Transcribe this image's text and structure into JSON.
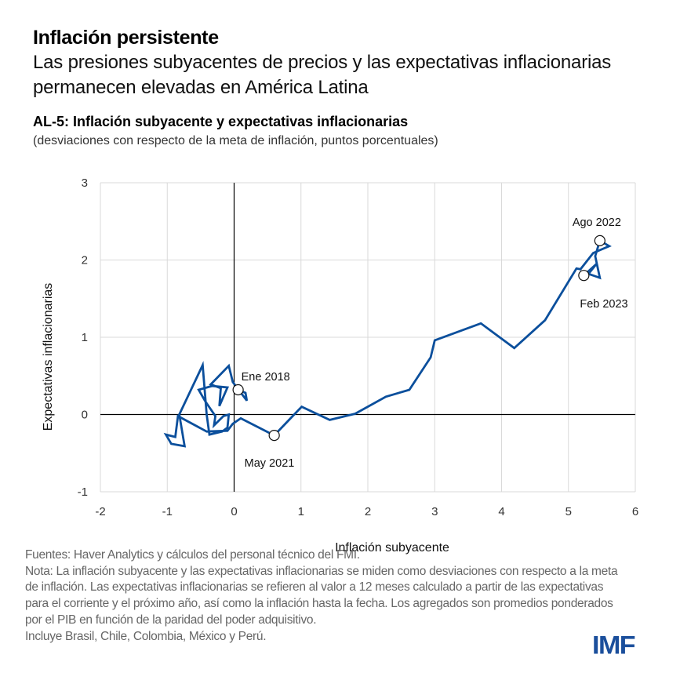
{
  "header": {
    "title": "Inflación persistente",
    "subtitle": "Las presiones subyacentes de precios y las expectativas inflacionarias permanecen elevadas en América Latina"
  },
  "chart_title": "AL-5: Inflación subyacente y expectativas inflacionarias",
  "chart_subtitle": "(desviaciones con respecto de la meta de inflación, puntos porcentuales)",
  "chart_data": {
    "type": "line",
    "title": "AL-5: Inflación subyacente y expectativas inflacionarias",
    "xlabel": "Inflación subyacente",
    "ylabel": "Expectativas inflacionarias",
    "xlim": [
      -2,
      6
    ],
    "ylim": [
      -1,
      3
    ],
    "xticks": [
      "-2",
      "-1",
      "0",
      "1",
      "2",
      "3",
      "4",
      "5",
      "6"
    ],
    "yticks": [
      "-1",
      "0",
      "1",
      "2",
      "3"
    ],
    "grid": true,
    "color": "#0b4f9c",
    "points": [
      [
        0.06,
        0.32
      ],
      [
        0.17,
        0.28
      ],
      [
        0.19,
        0.18
      ],
      [
        -0.02,
        0.42
      ],
      [
        -0.08,
        0.63
      ],
      [
        -0.35,
        0.39
      ],
      [
        -0.2,
        0.34
      ],
      [
        -0.22,
        0.11
      ],
      [
        -0.1,
        0.35
      ],
      [
        -0.33,
        0.37
      ],
      [
        -0.53,
        0.32
      ],
      [
        -0.43,
        0.17
      ],
      [
        -0.28,
        -0.02
      ],
      [
        -0.3,
        -0.14
      ],
      [
        -0.16,
        -0.02
      ],
      [
        -0.08,
        0.0
      ],
      [
        -0.1,
        -0.17
      ],
      [
        -0.18,
        -0.22
      ],
      [
        -0.37,
        -0.26
      ],
      [
        -0.41,
        0.0
      ],
      [
        -0.47,
        0.64
      ],
      [
        -0.82,
        0.0
      ],
      [
        -0.74,
        -0.41
      ],
      [
        -0.94,
        -0.38
      ],
      [
        -1.02,
        -0.26
      ],
      [
        -0.88,
        -0.29
      ],
      [
        -0.84,
        -0.02
      ],
      [
        -0.41,
        -0.22
      ],
      [
        -0.1,
        -0.21
      ],
      [
        -0.02,
        -0.12
      ],
      [
        0.1,
        -0.05
      ],
      [
        0.6,
        -0.27
      ],
      [
        1.01,
        0.1
      ],
      [
        1.43,
        -0.07
      ],
      [
        1.81,
        0.01
      ],
      [
        2.27,
        0.23
      ],
      [
        2.62,
        0.32
      ],
      [
        2.94,
        0.74
      ],
      [
        3.0,
        0.96
      ],
      [
        3.69,
        1.18
      ],
      [
        4.19,
        0.86
      ],
      [
        4.65,
        1.22
      ],
      [
        5.12,
        1.89
      ],
      [
        5.18,
        1.88
      ],
      [
        5.37,
        2.09
      ],
      [
        5.61,
        2.18
      ],
      [
        5.47,
        2.25
      ],
      [
        5.4,
        2.05
      ],
      [
        5.47,
        1.77
      ],
      [
        5.3,
        1.82
      ],
      [
        5.42,
        1.95
      ],
      [
        5.23,
        1.8
      ]
    ],
    "annotations": [
      {
        "label": "Ene 2018",
        "x": 0.06,
        "y": 0.32
      },
      {
        "label": "May 2021",
        "x": 0.6,
        "y": -0.27
      },
      {
        "label": "Ago 2022",
        "x": 5.47,
        "y": 2.25
      },
      {
        "label": "Feb 2023",
        "x": 5.23,
        "y": 1.8
      }
    ]
  },
  "footer": {
    "sources": "Fuentes: Haver Analytics y cálculos del personal técnico del FMI.",
    "note": "Nota: La inflación subyacente y las expectativas inflacionarias se miden como desviaciones con respecto a la meta de inflación. Las expectativas inflacionarias se refieren al valor a 12 meses calculado a partir de las expectativas para el corriente y el próximo año, así como la inflación hasta la fecha. Los agregados son promedios ponderados por el PIB en función de la paridad del poder adquisitivo.",
    "includes": "Incluye Brasil, Chile, Colombia, México y Perú."
  },
  "logo": "IMF"
}
